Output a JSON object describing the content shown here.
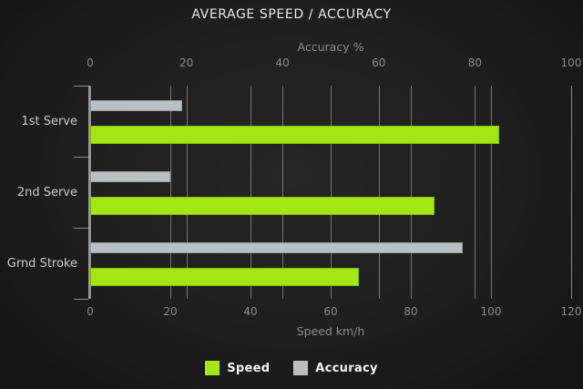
{
  "chart_data": {
    "type": "bar",
    "orientation": "horizontal",
    "title": "AVERAGE SPEED / ACCURACY",
    "categories": [
      "1st Serve",
      "2nd Serve",
      "Grnd Stroke"
    ],
    "series": [
      {
        "name": "Speed",
        "color": "#a3e613",
        "border_color": "#82bd05",
        "values": [
          102,
          86,
          67
        ],
        "scale": "bottom"
      },
      {
        "name": "Accuracy",
        "color": "#b9c0c4",
        "border_color": "#969da0",
        "values": [
          23,
          20,
          93
        ],
        "scale": "bottom"
      }
    ],
    "axes": {
      "top": {
        "label": "Accuracy %",
        "ticks": [
          0,
          20,
          40,
          60,
          80,
          100
        ],
        "min": 0,
        "max": 100
      },
      "bottom": {
        "label": "Speed km/h",
        "ticks": [
          0,
          20,
          40,
          60,
          80,
          100,
          120
        ],
        "min": 0,
        "max": 120
      }
    },
    "grid": true,
    "legend_position": "bottom",
    "colors": {
      "background_center": "#262626",
      "background_edge": "#131313",
      "grid": "#8a8a8a",
      "axis_text": "#8a8a8a",
      "category_text": "#cbcbcb",
      "title_text": "#e8e8e8",
      "legend_text": "#f2f2f2"
    }
  }
}
